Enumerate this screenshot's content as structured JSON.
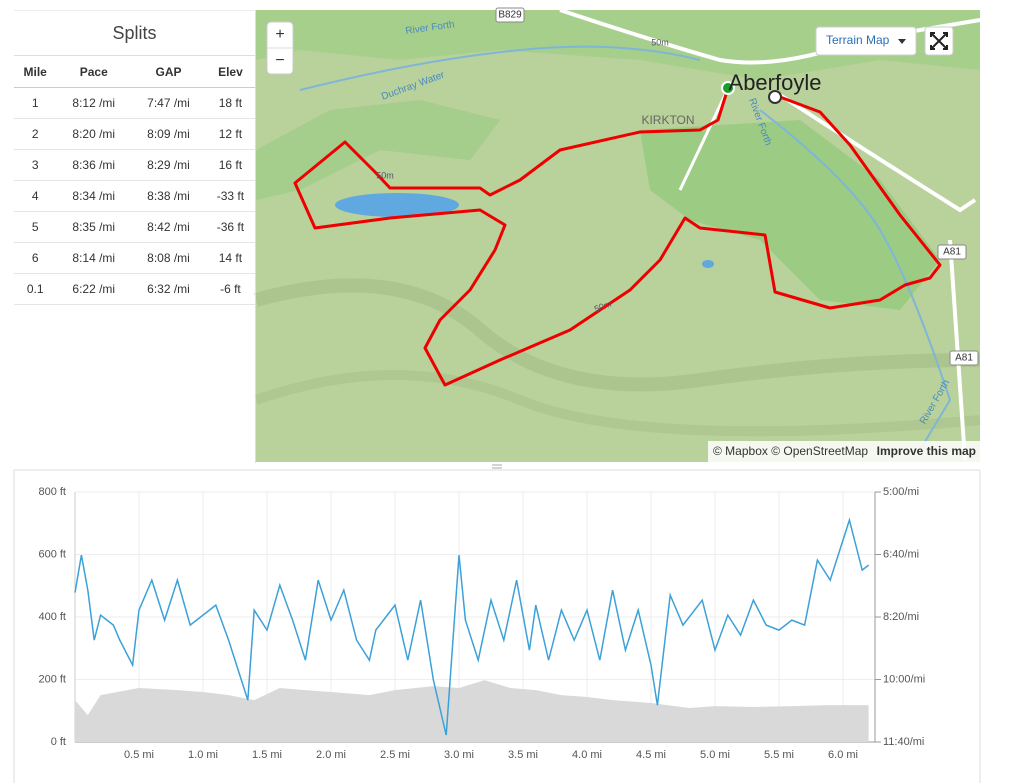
{
  "splits": {
    "title": "Splits",
    "headers": [
      "Mile",
      "Pace",
      "GAP",
      "Elev"
    ],
    "rows": [
      [
        "1",
        "8:12 /mi",
        "7:47 /mi",
        "18 ft"
      ],
      [
        "2",
        "8:20 /mi",
        "8:09 /mi",
        "12 ft"
      ],
      [
        "3",
        "8:36 /mi",
        "8:29 /mi",
        "16 ft"
      ],
      [
        "4",
        "8:34 /mi",
        "8:38 /mi",
        "-33 ft"
      ],
      [
        "5",
        "8:35 /mi",
        "8:42 /mi",
        "-36 ft"
      ],
      [
        "6",
        "8:14 /mi",
        "8:08 /mi",
        "14 ft"
      ],
      [
        "0.1",
        "6:22 /mi",
        "6:32 /mi",
        "-6 ft"
      ]
    ]
  },
  "map": {
    "layer_button": "Terrain Map",
    "zoom_in": "+",
    "zoom_out": "−",
    "labels": [
      "Aberfoyle",
      "KIRKTON",
      "River Forth",
      "River Forth",
      "River Forth",
      "Duchray Water",
      "B829",
      "A81",
      "A81",
      "50m",
      "50m",
      "50m"
    ],
    "attribution": "© Mapbox © OpenStreetMap",
    "improve": "Improve this map"
  },
  "chart": {
    "type": "line",
    "xlim": [
      0,
      6.25
    ],
    "xticks": [
      {
        "value": 0.5,
        "label": "0.5 mi"
      },
      {
        "value": 1.0,
        "label": "1.0 mi"
      },
      {
        "value": 1.5,
        "label": "1.5 mi"
      },
      {
        "value": 2.0,
        "label": "2.0 mi"
      },
      {
        "value": 2.5,
        "label": "2.5 mi"
      },
      {
        "value": 3.0,
        "label": "3.0 mi"
      },
      {
        "value": 3.5,
        "label": "3.5 mi"
      },
      {
        "value": 4.0,
        "label": "4.0 mi"
      },
      {
        "value": 4.5,
        "label": "4.5 mi"
      },
      {
        "value": 5.0,
        "label": "5.0 mi"
      },
      {
        "value": 5.5,
        "label": "5.5 mi"
      },
      {
        "value": 6.0,
        "label": "6.0 mi"
      }
    ],
    "ylim": [
      0,
      800
    ],
    "yticks": [
      {
        "value": 0,
        "label": "0 ft"
      },
      {
        "value": 200,
        "label": "200 ft"
      },
      {
        "value": 400,
        "label": "400 ft"
      },
      {
        "value": 600,
        "label": "600 ft"
      },
      {
        "value": 800,
        "label": "800 ft"
      }
    ],
    "y2lim": [
      700,
      300
    ],
    "y2ticks": [
      {
        "value": 300,
        "label": "5:00/mi"
      },
      {
        "value": 400,
        "label": "6:40/mi"
      },
      {
        "value": 500,
        "label": "8:20/mi"
      },
      {
        "value": 600,
        "label": "10:00/mi"
      },
      {
        "value": 700,
        "label": "11:40/mi"
      }
    ],
    "series": [
      {
        "type": "area",
        "color": "#d9d9d9",
        "x": [
          0,
          0.1,
          0.2,
          0.5,
          0.8,
          1.0,
          1.2,
          1.4,
          1.6,
          1.8,
          2.0,
          2.3,
          2.5,
          2.8,
          3.0,
          3.2,
          3.4,
          3.6,
          3.8,
          4.0,
          4.2,
          4.5,
          4.8,
          5.0,
          5.3,
          5.6,
          5.9,
          6.2
        ],
        "values": [
          134,
          86,
          150,
          173,
          166,
          160,
          150,
          134,
          173,
          166,
          160,
          150,
          166,
          179,
          173,
          198,
          173,
          166,
          150,
          144,
          134,
          125,
          109,
          115,
          112,
          115,
          118,
          118
        ]
      },
      {
        "type": "line",
        "color": "#3ba1d8",
        "axis": "y2",
        "x": [
          0,
          0.05,
          0.1,
          0.15,
          0.2,
          0.3,
          0.35,
          0.45,
          0.5,
          0.6,
          0.7,
          0.8,
          0.9,
          1.0,
          1.1,
          1.2,
          1.35,
          1.4,
          1.5,
          1.6,
          1.7,
          1.8,
          1.9,
          2.0,
          2.1,
          2.2,
          2.3,
          2.35,
          2.5,
          2.6,
          2.7,
          2.8,
          2.9,
          3.0,
          3.05,
          3.15,
          3.25,
          3.35,
          3.45,
          3.55,
          3.6,
          3.7,
          3.8,
          3.9,
          4.0,
          4.1,
          4.2,
          4.3,
          4.4,
          4.5,
          4.55,
          4.65,
          4.75,
          4.9,
          5.0,
          5.1,
          5.2,
          5.3,
          5.4,
          5.5,
          5.6,
          5.7,
          5.8,
          5.9,
          6.05,
          6.15,
          6.2
        ],
        "values": [
          461,
          401,
          457,
          537,
          497,
          513,
          537,
          577,
          489,
          441,
          505,
          441,
          513,
          497,
          481,
          537,
          633,
          489,
          521,
          449,
          505,
          569,
          441,
          505,
          457,
          537,
          569,
          521,
          481,
          569,
          473,
          601,
          689,
          401,
          505,
          569,
          473,
          537,
          441,
          553,
          481,
          569,
          489,
          537,
          489,
          569,
          457,
          553,
          489,
          577,
          641,
          465,
          513,
          473,
          553,
          497,
          529,
          473,
          513,
          521,
          505,
          513,
          409,
          441,
          345,
          425,
          417
        ]
      }
    ]
  }
}
